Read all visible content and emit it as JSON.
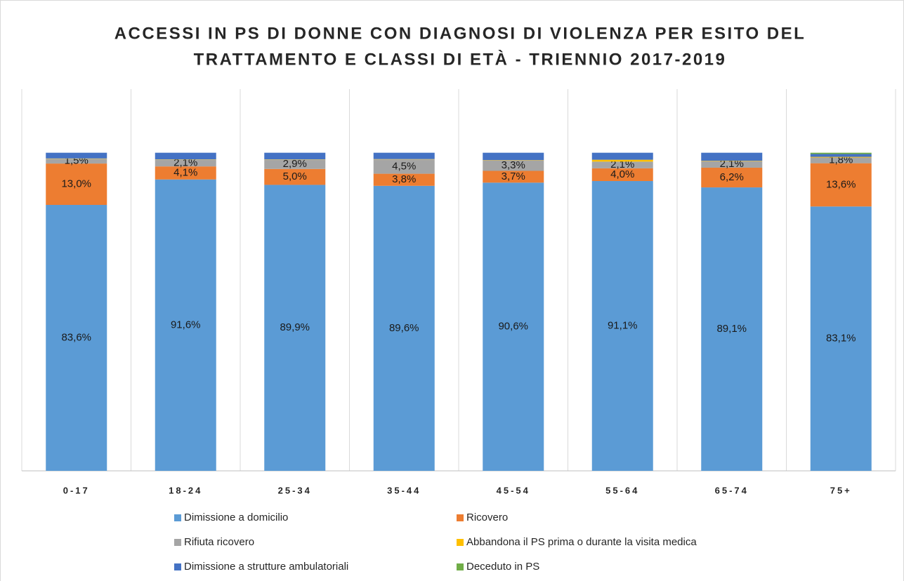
{
  "chart_data": {
    "type": "stacked_bar",
    "title": [
      "ACCESSI IN PS DI DONNE CON DIAGNOSI DI VIOLENZA PER ESITO DEL",
      "TRATTAMENTO E CLASSI DI ETÀ - TRIENNIO 2017-2019"
    ],
    "categories": [
      "0-17",
      "18-24",
      "25-34",
      "35-44",
      "45-54",
      "55-64",
      "65-74",
      "75+"
    ],
    "ylim": [
      0,
      120
    ],
    "series": [
      {
        "name": "Dimissione a domicilio",
        "color": "#5b9bd5",
        "values": [
          83.6,
          91.6,
          89.9,
          89.6,
          90.6,
          91.1,
          89.1,
          83.1
        ],
        "value_labels": [
          "83,6%",
          "91,6%",
          "89,9%",
          "89,6%",
          "90,6%",
          "91,1%",
          "89,1%",
          "83,1%"
        ]
      },
      {
        "name": "Ricovero",
        "color": "#ed7d31",
        "values": [
          13.0,
          4.1,
          5.0,
          3.8,
          3.7,
          4.0,
          6.2,
          13.6
        ],
        "value_labels": [
          "13,0%",
          "4,1%",
          "5,0%",
          "3,8%",
          "3,7%",
          "4,0%",
          "6,2%",
          "13,6%"
        ]
      },
      {
        "name": "Rifiuta ricovero",
        "color": "#a5a5a5",
        "values": [
          1.5,
          2.1,
          2.9,
          4.5,
          3.3,
          2.1,
          2.1,
          1.8
        ],
        "value_labels": [
          "1,5%",
          "2,1%",
          "2,9%",
          "4,5%",
          "3,3%",
          "2,1%",
          "2,1%",
          "1,8%"
        ]
      },
      {
        "name": "Abbandona il PS prima o durante la visita medica",
        "color": "#ffc000",
        "values": [
          0.1,
          0.1,
          0.1,
          0.1,
          0.1,
          0.6,
          0.1,
          0.2
        ]
      },
      {
        "name": "Dimissione a strutture ambulatoriali",
        "color": "#4472c4",
        "values": [
          1.8,
          2.1,
          2.1,
          2.0,
          2.3,
          2.2,
          2.5,
          0.9
        ]
      },
      {
        "name": "Deceduto in PS",
        "color": "#70ad47",
        "values": [
          0,
          0,
          0,
          0,
          0,
          0,
          0,
          0.4
        ]
      }
    ]
  }
}
